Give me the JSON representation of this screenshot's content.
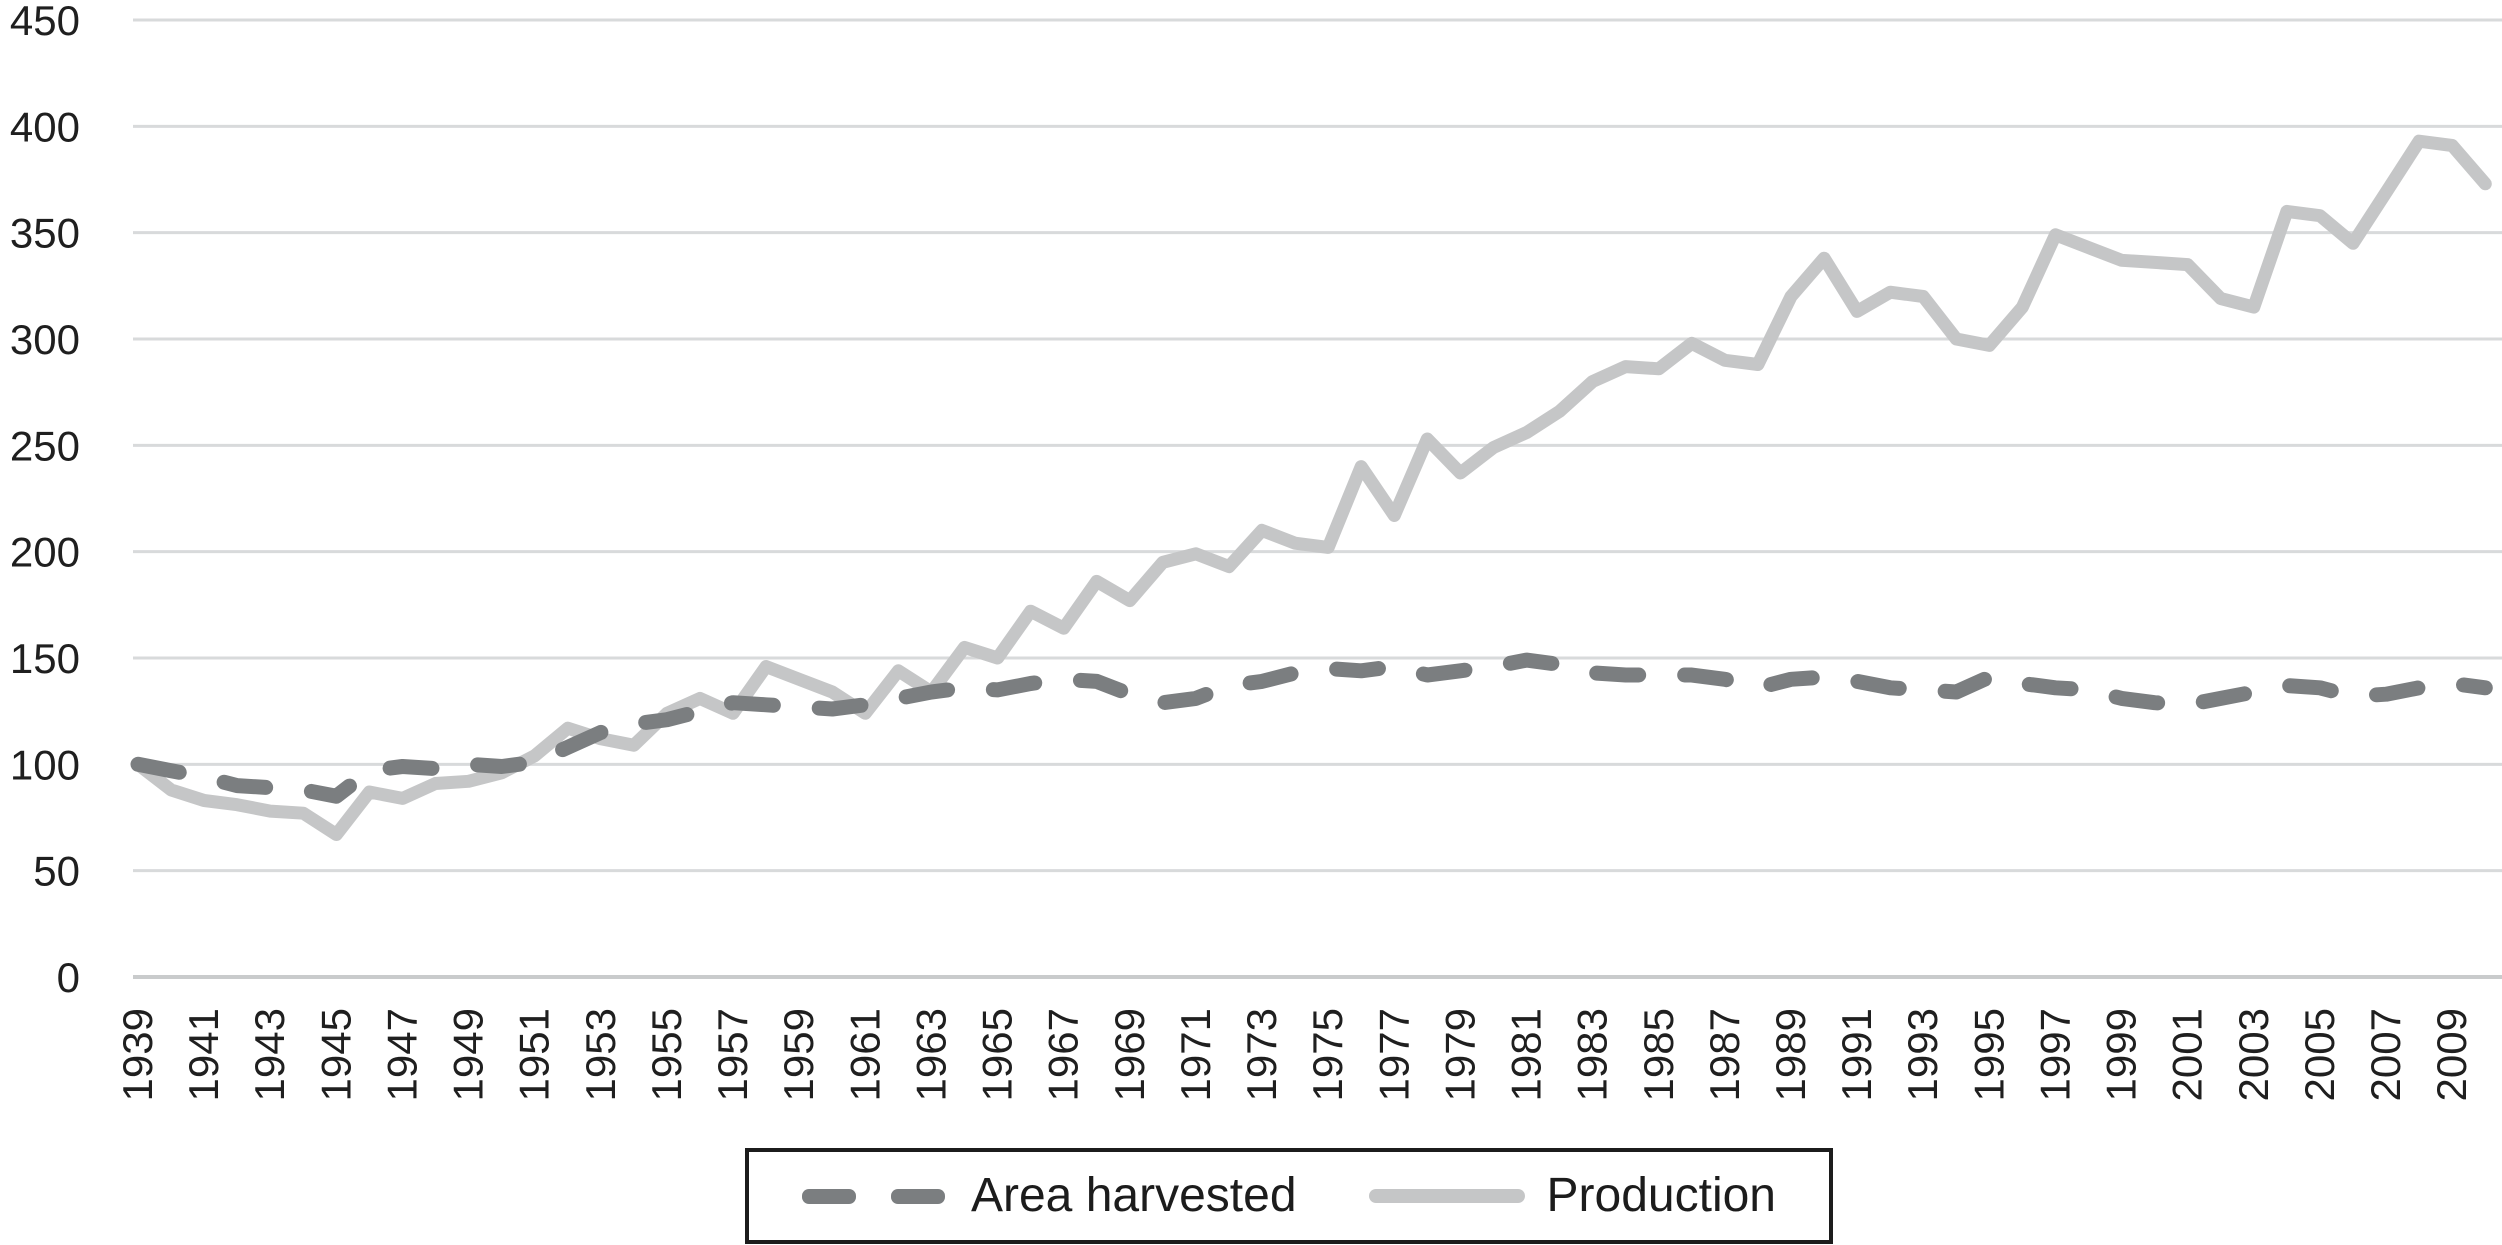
{
  "legend": {
    "area_label": "Area harvested",
    "production_label": "Production"
  },
  "colors": {
    "background": "#ffffff",
    "gridline": "#d8dadb",
    "zero_line": "#c9cbcc",
    "tick_text": "#1f1f1f",
    "legend_border": "#1c1c1c",
    "area_harvested": "#7b7e80",
    "production": "#c5c6c7"
  },
  "chart_data": {
    "type": "line",
    "title": "",
    "xlabel": "",
    "ylabel": "",
    "ylim": [
      0,
      450
    ],
    "yticks": [
      0,
      50,
      100,
      150,
      200,
      250,
      300,
      350,
      400,
      450
    ],
    "grid": true,
    "legend_position": "bottom",
    "x": [
      1939,
      1940,
      1941,
      1942,
      1943,
      1944,
      1945,
      1946,
      1947,
      1948,
      1949,
      1950,
      1951,
      1952,
      1953,
      1954,
      1955,
      1956,
      1957,
      1958,
      1959,
      1960,
      1961,
      1962,
      1963,
      1964,
      1965,
      1966,
      1967,
      1968,
      1969,
      1970,
      1971,
      1972,
      1973,
      1974,
      1975,
      1976,
      1977,
      1978,
      1979,
      1980,
      1981,
      1982,
      1983,
      1984,
      1985,
      1986,
      1987,
      1988,
      1989,
      1990,
      1991,
      1992,
      1993,
      1994,
      1995,
      1996,
      1997,
      1998,
      1999,
      2000,
      2001,
      2002,
      2003,
      2004,
      2005,
      2006,
      2007,
      2008,
      2009,
      2010
    ],
    "x_tick_labels": [
      "1939",
      "1941",
      "1943",
      "1945",
      "1947",
      "1949",
      "1951",
      "1953",
      "1955",
      "1957",
      "1959",
      "1961",
      "1963",
      "1965",
      "1967",
      "1969",
      "1971",
      "1973",
      "1975",
      "1977",
      "1979",
      "1981",
      "1983",
      "1985",
      "1987",
      "1989",
      "1991",
      "1993",
      "1995",
      "1997",
      "1999",
      "2001",
      "2003",
      "2005",
      "2007",
      "2009"
    ],
    "series": [
      {
        "name": "Area harvested",
        "style": "dashed",
        "color": "#7b7e80",
        "values": [
          100,
          97,
          94,
          90,
          89,
          88,
          85,
          97,
          99,
          98,
          100,
          99,
          101,
          108,
          115,
          119,
          121,
          125,
          129,
          128,
          127,
          126,
          128,
          131,
          134,
          136,
          135,
          138,
          140,
          139,
          133,
          129,
          131,
          137,
          139,
          143,
          145,
          144,
          146,
          142,
          144,
          146,
          149,
          147,
          143,
          142,
          142,
          142,
          140,
          136,
          140,
          141,
          139,
          136,
          135,
          134,
          141,
          138,
          136,
          135,
          131,
          129,
          128,
          131,
          134,
          137,
          136,
          132,
          133,
          136,
          138,
          136
        ]
      },
      {
        "name": "Production",
        "style": "solid",
        "color": "#c5c6c7",
        "values": [
          100,
          88,
          83,
          81,
          78,
          77,
          67,
          87,
          84,
          91,
          92,
          96,
          104,
          117,
          112,
          109,
          124,
          131,
          124,
          146,
          140,
          134,
          124,
          144,
          134,
          155,
          150,
          172,
          164,
          186,
          177,
          195,
          199,
          193,
          210,
          204,
          202,
          240,
          217,
          253,
          237,
          249,
          256,
          266,
          280,
          287,
          286,
          298,
          290,
          288,
          320,
          338,
          313,
          322,
          320,
          300,
          297,
          315,
          349,
          343,
          337,
          336,
          335,
          319,
          315,
          360,
          358,
          345,
          369,
          393,
          391,
          373
        ]
      }
    ]
  }
}
